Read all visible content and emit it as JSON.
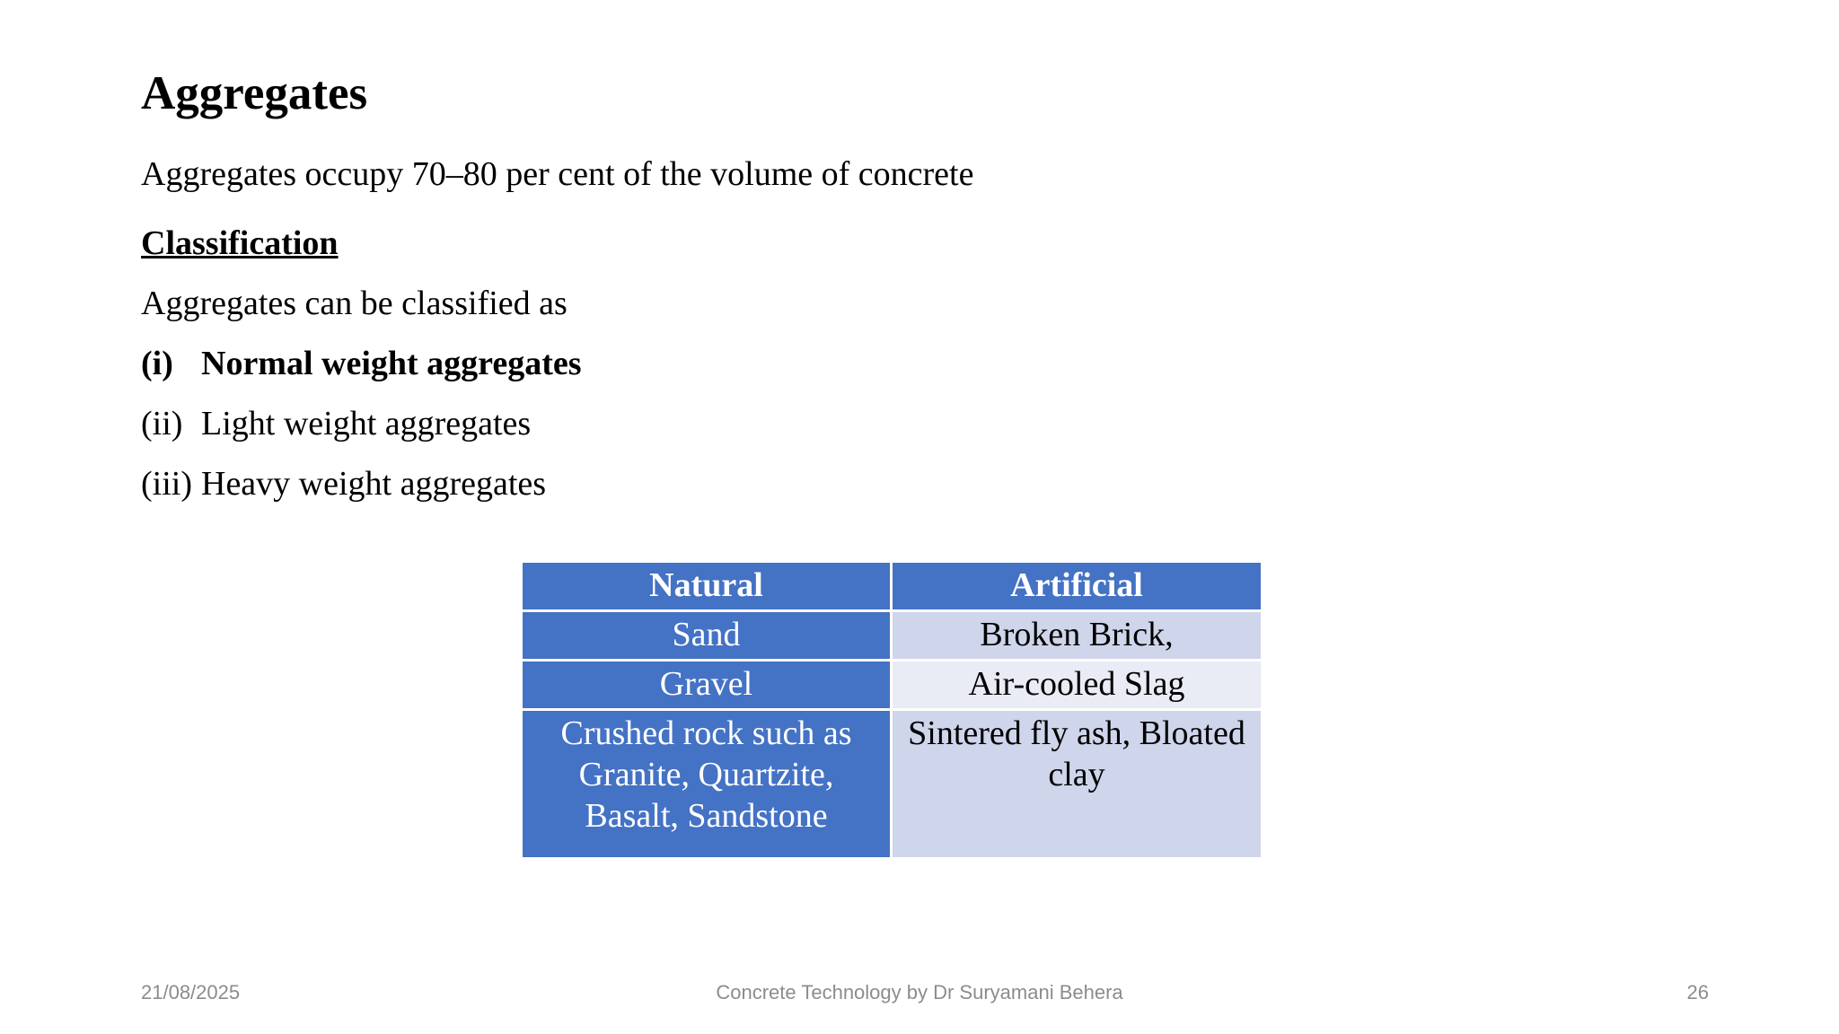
{
  "slide": {
    "title": "Aggregates",
    "intro": "Aggregates occupy 70–80 per cent of the volume of concrete",
    "classification_heading": "Classification",
    "classified_text": "Aggregates can be classified as",
    "items": [
      {
        "num": "(i)",
        "text": "Normal weight aggregates"
      },
      {
        "num": "(ii)",
        "text": "Light weight aggregates"
      },
      {
        "num": "(iii)",
        "text": "Heavy weight aggregates"
      }
    ]
  },
  "table": {
    "headers": [
      "Natural",
      "Artificial"
    ],
    "rows": [
      [
        "Sand",
        "Broken Brick,"
      ],
      [
        "Gravel",
        "Air-cooled Slag"
      ],
      [
        "Crushed rock such as Granite, Quartzite, Basalt, Sandstone",
        "Sintered fly ash, Bloated clay"
      ]
    ],
    "colors": {
      "header_bg": "#4472c4",
      "natural_bg": "#4472c4",
      "artificial_odd_bg": "#cfd5ea",
      "artificial_even_bg": "#e9ebf5"
    }
  },
  "footer": {
    "date": "21/08/2025",
    "center": "Concrete Technology by Dr Suryamani Behera",
    "page": "26"
  }
}
